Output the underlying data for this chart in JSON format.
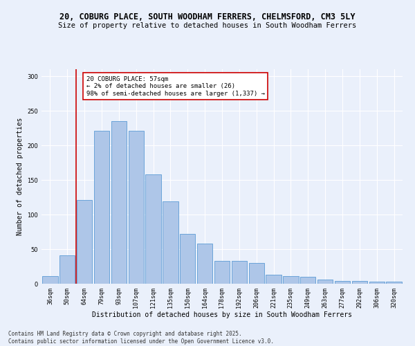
{
  "title1": "20, COBURG PLACE, SOUTH WOODHAM FERRERS, CHELMSFORD, CM3 5LY",
  "title2": "Size of property relative to detached houses in South Woodham Ferrers",
  "xlabel": "Distribution of detached houses by size in South Woodham Ferrers",
  "ylabel": "Number of detached properties",
  "categories": [
    "36sqm",
    "50sqm",
    "64sqm",
    "79sqm",
    "93sqm",
    "107sqm",
    "121sqm",
    "135sqm",
    "150sqm",
    "164sqm",
    "178sqm",
    "192sqm",
    "206sqm",
    "221sqm",
    "235sqm",
    "249sqm",
    "263sqm",
    "277sqm",
    "292sqm",
    "306sqm",
    "320sqm"
  ],
  "values": [
    11,
    41,
    121,
    221,
    235,
    221,
    158,
    119,
    72,
    58,
    33,
    33,
    30,
    13,
    11,
    10,
    6,
    4,
    4,
    3,
    3
  ],
  "bar_color": "#aec6e8",
  "bar_edge_color": "#5b9bd5",
  "vline_x": 1.5,
  "vline_color": "#cc0000",
  "annotation_text": "20 COBURG PLACE: 57sqm\n← 2% of detached houses are smaller (26)\n98% of semi-detached houses are larger (1,337) →",
  "annotation_box_color": "#ffffff",
  "annotation_box_edge": "#cc0000",
  "footer": "Contains HM Land Registry data © Crown copyright and database right 2025.\nContains public sector information licensed under the Open Government Licence v3.0.",
  "ylim": [
    0,
    310
  ],
  "yticks": [
    0,
    50,
    100,
    150,
    200,
    250,
    300
  ],
  "background_color": "#eaf0fb",
  "grid_color": "#ffffff",
  "title_fontsize": 8.5,
  "subtitle_fontsize": 7.5,
  "axis_label_fontsize": 7,
  "tick_fontsize": 6,
  "footer_fontsize": 5.5,
  "annotation_fontsize": 6.5
}
